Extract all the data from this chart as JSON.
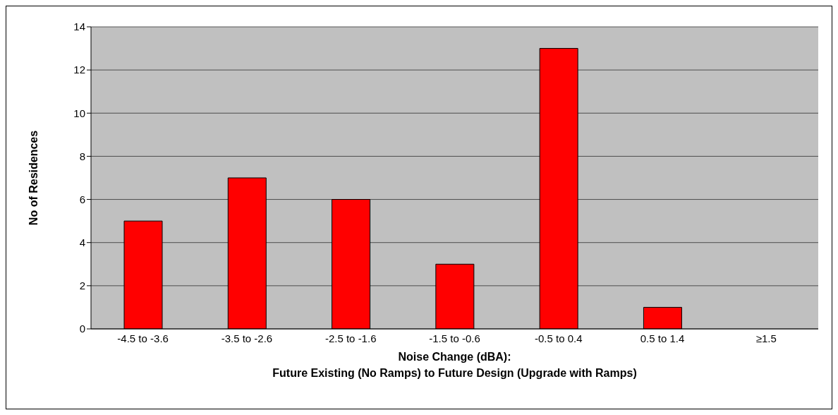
{
  "chart_data": {
    "type": "bar",
    "categories": [
      "-4.5 to -3.6",
      "-3.5 to -2.6",
      "-2.5 to -1.6",
      "-1.5 to -0.6",
      "-0.5 to 0.4",
      "0.5 to 1.4",
      "≥1.5"
    ],
    "values": [
      5,
      7,
      6,
      3,
      13,
      1,
      0
    ],
    "color": "#ff0000",
    "ylim": [
      0,
      14
    ],
    "yticks": [
      0,
      2,
      4,
      6,
      8,
      10,
      12,
      14
    ],
    "grid": "y",
    "xlabel": "Noise Change (dBA):\nFuture Existing (No Ramps) to Future Design (Upgrade with Ramps)",
    "ylabel": "No of Residences"
  }
}
